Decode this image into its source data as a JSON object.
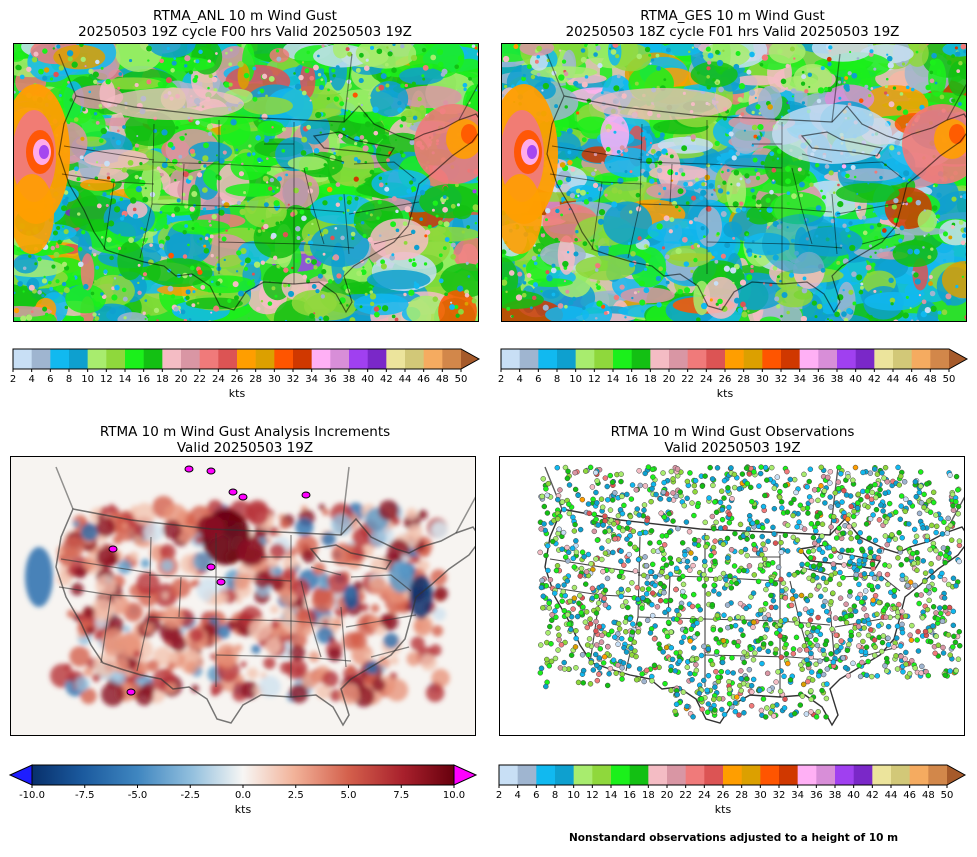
{
  "panels": [
    {
      "id": "anl",
      "title_line1": "RTMA_ANL 10 m Wind Gust",
      "title_line2": "20250503 19Z cycle F00 hrs Valid 20250503 19Z",
      "field": "gust"
    },
    {
      "id": "ges",
      "title_line1": "RTMA_GES 10 m Wind Gust",
      "title_line2": "20250503 18Z cycle F01 hrs Valid 20250503 19Z",
      "field": "gust"
    },
    {
      "id": "inc",
      "title_line1": "RTMA 10 m Wind Gust Analysis Increments",
      "title_line2": "Valid 20250503 19Z",
      "field": "increment"
    },
    {
      "id": "obs",
      "title_line1": "RTMA 10 m Wind Gust Observations",
      "title_line2": "Valid 20250503 19Z",
      "field": "obs"
    }
  ],
  "gust_colorbar": {
    "unit": "kts",
    "ticks": [
      "2",
      "4",
      "6",
      "8",
      "10",
      "12",
      "14",
      "16",
      "18",
      "20",
      "22",
      "24",
      "26",
      "28",
      "30",
      "32",
      "34",
      "36",
      "38",
      "40",
      "42",
      "44",
      "46",
      "48",
      "50"
    ],
    "colors": [
      "#c8dff5",
      "#9fb5d0",
      "#11b9f0",
      "#0ea0cf",
      "#a8ec6e",
      "#8fd83c",
      "#1bf01b",
      "#13c013",
      "#f4bcc4",
      "#d996a4",
      "#f07a7a",
      "#dc5454",
      "#ff9e00",
      "#dca000",
      "#ff5500",
      "#d03800",
      "#ffb0f5",
      "#d88ed8",
      "#a040f0",
      "#7a28c8",
      "#ece49c",
      "#d2c878",
      "#f5ab60",
      "#d2874a"
    ],
    "extend_color": "#a65a2a"
  },
  "inc_colorbar": {
    "unit": "kts",
    "ticks": [
      "-10.0",
      "-7.5",
      "-5.0",
      "-2.5",
      "0.0",
      "2.5",
      "5.0",
      "7.5",
      "10.0"
    ],
    "min_color": "#1e1eff",
    "max_color": "#ff00ff"
  },
  "footnote": "Nonstandard observations adjusted to a height of 10 m"
}
